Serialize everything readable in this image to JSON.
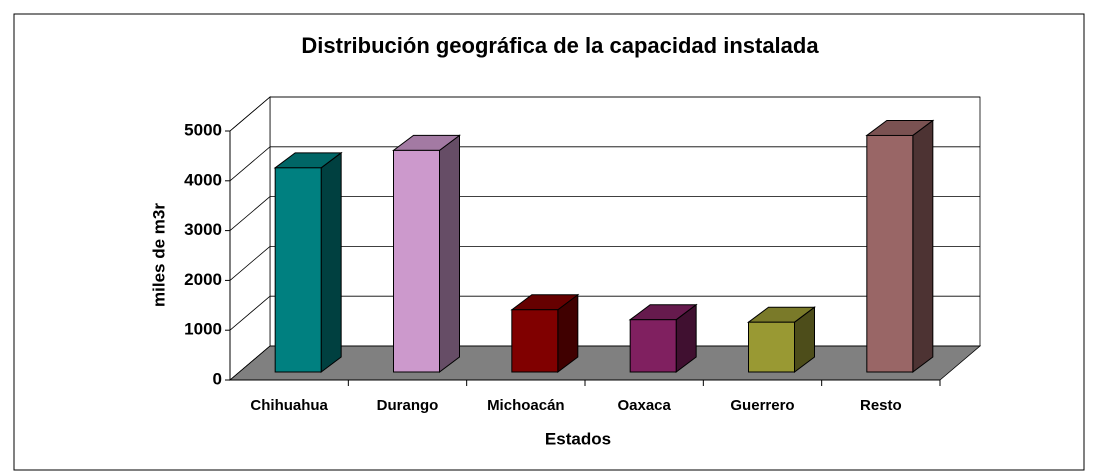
{
  "chart_data": {
    "type": "bar3d",
    "title": "Distribución geográfica de la capacidad instalada",
    "x_label": "Estados",
    "y_label": "miles de m3r",
    "categories": [
      "Chihuahua",
      "Durango",
      "Michoacán",
      "Oaxaca",
      "Guerrero",
      "Resto"
    ],
    "values": [
      4100,
      4450,
      1250,
      1050,
      1000,
      4750
    ],
    "colors": [
      "#008080",
      "#cc99cc",
      "#800000",
      "#802060",
      "#999933",
      "#996666"
    ],
    "ylim": [
      0,
      5000
    ],
    "yticks": [
      0,
      1000,
      2000,
      3000,
      4000,
      5000
    ],
    "grid": true
  }
}
